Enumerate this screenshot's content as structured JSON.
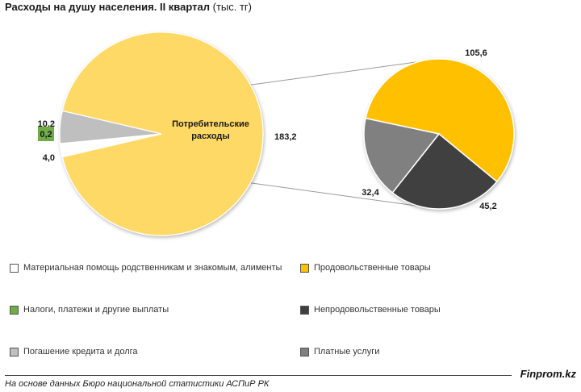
{
  "title": {
    "bold": "Расходы на душу населения. II квартал",
    "unit": "(тыс. тг)"
  },
  "chart_data": {
    "type": "bar-of-pie",
    "main_pie": {
      "slices": [
        {
          "label": "Потребительские расходы",
          "value": 183.2,
          "display": "183,2",
          "color": "#FFD966"
        },
        {
          "label": "Материальная помощь родственникам и знакомым, алименты",
          "value": 4.0,
          "display": "4,0",
          "color": "#FFFFFF"
        },
        {
          "label": "Налоги, платежи и другие выплаты",
          "value": 0.2,
          "display": "0,2",
          "color": "#70AD47"
        },
        {
          "label": "Погашение кредита и долга",
          "value": 10.2,
          "display": "10,2",
          "color": "#BFBFBF"
        }
      ],
      "center_label": "Потребительские\nрасходы"
    },
    "sub_pie": {
      "slices": [
        {
          "label": "Продовольственные товары",
          "value": 105.6,
          "display": "105,6",
          "color": "#FFC000"
        },
        {
          "label": "Непродовольственные товары",
          "value": 45.2,
          "display": "45,2",
          "color": "#404040"
        },
        {
          "label": "Платные услуги",
          "value": 32.4,
          "display": "32,4",
          "color": "#808080"
        }
      ]
    }
  },
  "legend": [
    {
      "label": "Материальная помощь родственникам и знакомым, алименты",
      "color": "#FFFFFF"
    },
    {
      "label": "Продовольственные товары",
      "color": "#FFC000"
    },
    {
      "label": "Налоги, платежи и другие выплаты",
      "color": "#70AD47"
    },
    {
      "label": "Непродовольственные товары",
      "color": "#404040"
    },
    {
      "label": "Погашение кредита и долга",
      "color": "#BFBFBF"
    },
    {
      "label": "Платные услуги",
      "color": "#808080"
    }
  ],
  "footer": {
    "source": "На основе данных Бюро национальной статистики АСПиР РК",
    "brand": "Finprom.kz"
  }
}
